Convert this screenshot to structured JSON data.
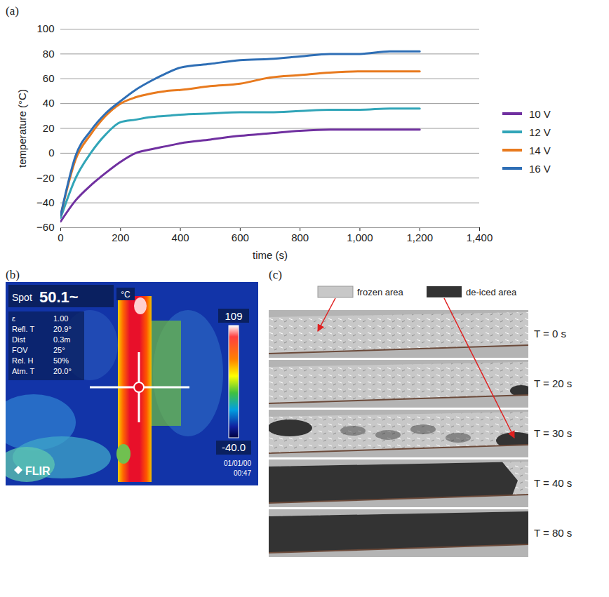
{
  "chart_data": {
    "type": "line",
    "panel_label": "(a)",
    "x_label": "time (s)",
    "y_label": "temperature (°C)",
    "x": [
      0,
      50,
      100,
      150,
      200,
      250,
      300,
      350,
      400,
      500,
      600,
      700,
      800,
      900,
      1000,
      1100,
      1200
    ],
    "xlim": [
      0,
      1400
    ],
    "xticks": [
      0,
      200,
      400,
      600,
      800,
      1000,
      1200,
      1400
    ],
    "ylim": [
      -60,
      100
    ],
    "yticks": [
      -60,
      -40,
      -20,
      0,
      20,
      40,
      60,
      80,
      100
    ],
    "grid": "y",
    "legend": "right",
    "series": [
      {
        "name": "10 V",
        "color": "#7030a0",
        "values": [
          -55,
          -38,
          -26,
          -16,
          -7,
          0,
          3,
          5.5,
          8,
          11,
          14,
          16,
          18,
          19,
          19,
          19,
          19
        ]
      },
      {
        "name": "12 V",
        "color": "#31a5b8",
        "values": [
          -52,
          -20,
          0,
          15,
          25,
          27,
          29,
          30,
          31,
          32,
          33,
          33,
          34,
          35,
          35,
          36,
          36
        ]
      },
      {
        "name": "14 V",
        "color": "#e87a1e",
        "values": [
          -50,
          -5,
          15,
          30,
          40,
          45,
          48,
          50,
          51,
          54,
          56,
          61,
          63,
          65,
          66,
          66,
          66
        ]
      },
      {
        "name": "16 V",
        "color": "#2e6eb5",
        "values": [
          -50,
          -2,
          18,
          32,
          42,
          51,
          58,
          64,
          69,
          72,
          75,
          76,
          78,
          80,
          80,
          82,
          82
        ]
      }
    ]
  },
  "thermal_image": {
    "panel_label": "(b)",
    "spot_label": "Spot",
    "spot_value": "50.1~",
    "unit": "°C",
    "parameters": [
      {
        "label": "ε",
        "value": "1.00"
      },
      {
        "label": "Refl. T",
        "value": "20.9°"
      },
      {
        "label": "Dist",
        "value": "0.3m"
      },
      {
        "label": "FOV",
        "value": "25°"
      },
      {
        "label": "Rel. H",
        "value": "50%"
      },
      {
        "label": "Atm. T",
        "value": "20.0°"
      }
    ],
    "scale_max": "109",
    "scale_min": "-40.0",
    "brand": "FLIR",
    "date": "01/01/00",
    "time": "00:47"
  },
  "photo_sequence": {
    "panel_label": "(c)",
    "legend": [
      {
        "label": "frozen area",
        "color": "#c8c8c8"
      },
      {
        "label": "de-iced area",
        "color": "#333333"
      }
    ],
    "frames": [
      "T = 0 s",
      "T = 20 s",
      "T = 30 s",
      "T = 40 s",
      "T = 80 s"
    ]
  }
}
